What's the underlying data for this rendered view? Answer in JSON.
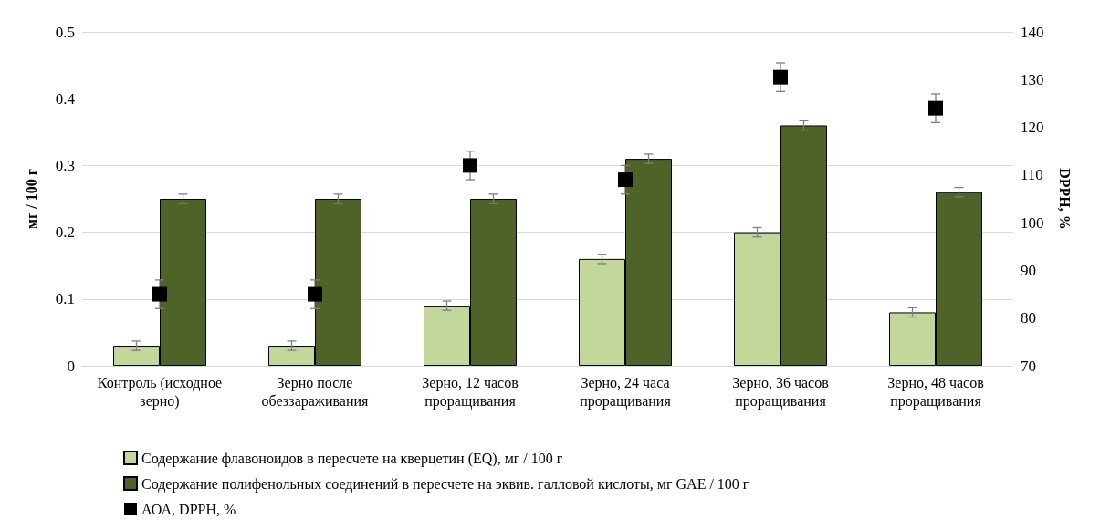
{
  "chart_data": {
    "type": "bar",
    "ylabel": "мг / 100 г",
    "y2label": "DPPH, %",
    "categories": [
      "Контроль (исходное зерно)",
      "Зерно после обеззараживания",
      "Зерно, 12 часов проращивания",
      "Зерно, 24 часа проращивания",
      "Зерно, 36 часов проращивания",
      "Зерно, 48 часов проращивания"
    ],
    "series": [
      {
        "name": "Содержание флавоноидов в пересчете на кверцетин (EQ), мг / 100 г",
        "color": "#c4d79b",
        "values": [
          0.03,
          0.03,
          0.09,
          0.16,
          0.2,
          0.08
        ],
        "errors": [
          0.007,
          0.007,
          0.007,
          0.007,
          0.007,
          0.007
        ]
      },
      {
        "name": "Содержание полифенольных соединений в пересчете на эквив. галловой кислоты, мг GAE / 100 г",
        "color": "#4f6228",
        "values": [
          0.25,
          0.25,
          0.25,
          0.31,
          0.36,
          0.26
        ],
        "errors": [
          0.007,
          0.007,
          0.007,
          0.007,
          0.007,
          0.007
        ]
      },
      {
        "name": "АОА, DPPH, %",
        "type": "scatter",
        "axis": "y2",
        "color": "#000000",
        "values": [
          85,
          85,
          112,
          109,
          130.5,
          124
        ],
        "errors": [
          3,
          3,
          3,
          3,
          3,
          3
        ]
      }
    ],
    "ylim": [
      0,
      0.5
    ],
    "yticks": [
      0,
      0.1,
      0.2,
      0.3,
      0.4,
      0.5
    ],
    "y2lim": [
      70,
      140
    ],
    "y2ticks": [
      70,
      80,
      90,
      100,
      110,
      120,
      130,
      140
    ],
    "grid": "y",
    "legend": "bottom",
    "marker": "square"
  }
}
